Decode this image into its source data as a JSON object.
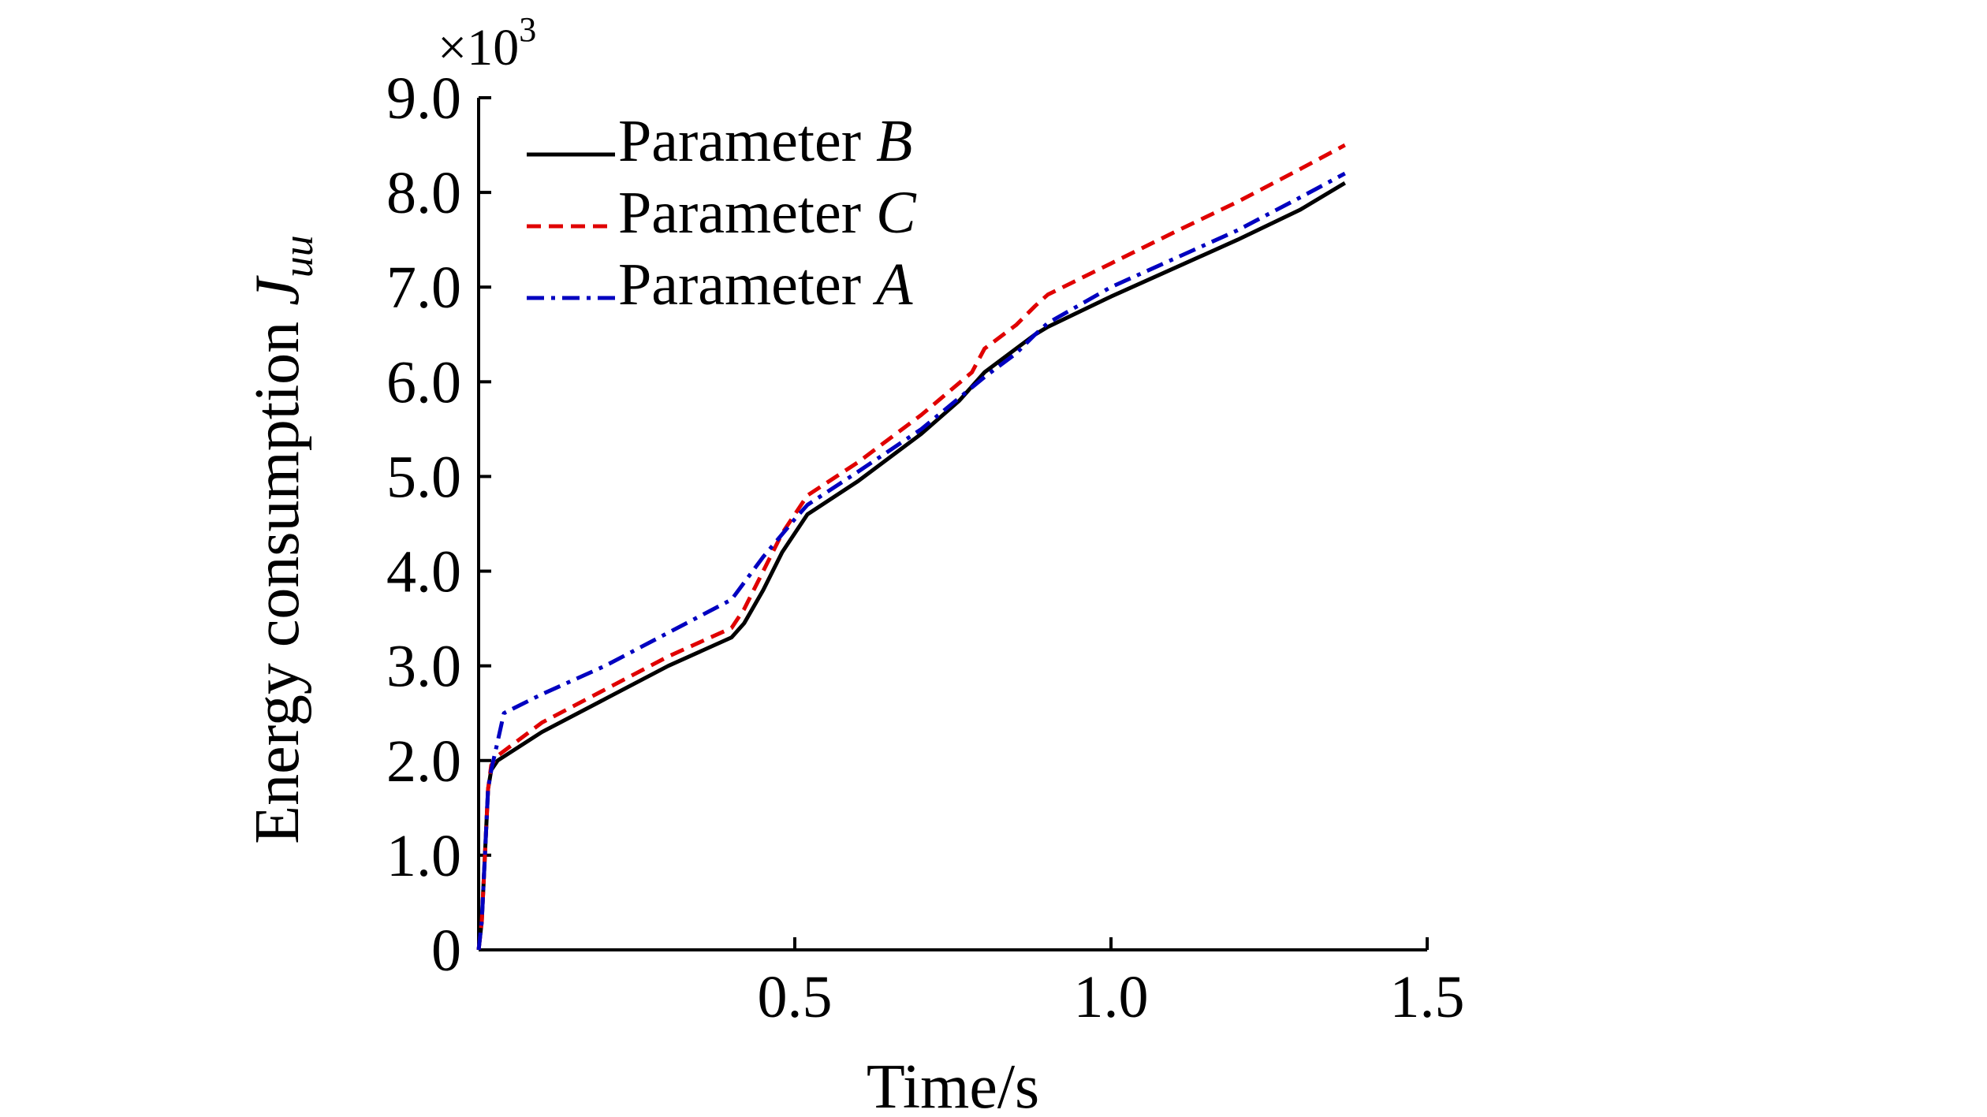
{
  "chart_data": {
    "type": "line",
    "xlabel": "Time/s",
    "ylabel_main": "Energy consumption ",
    "ylabel_var": "J",
    "ylabel_sub": "uu",
    "y_multiplier_prefix": "×10",
    "y_multiplier_exp": "3",
    "xlim": [
      0,
      1.5
    ],
    "ylim": [
      0,
      9.0
    ],
    "x_ticks": [
      {
        "value": 0.5,
        "label": "0.5"
      },
      {
        "value": 1.0,
        "label": "1.0"
      },
      {
        "value": 1.5,
        "label": "1.5"
      }
    ],
    "y_ticks": [
      {
        "value": 0,
        "label": "0"
      },
      {
        "value": 1.0,
        "label": "1.0"
      },
      {
        "value": 2.0,
        "label": "2.0"
      },
      {
        "value": 3.0,
        "label": "3.0"
      },
      {
        "value": 4.0,
        "label": "4.0"
      },
      {
        "value": 5.0,
        "label": "5.0"
      },
      {
        "value": 6.0,
        "label": "6.0"
      },
      {
        "value": 7.0,
        "label": "7.0"
      },
      {
        "value": 8.0,
        "label": "8.0"
      },
      {
        "value": 9.0,
        "label": "9.0"
      }
    ],
    "legend_position": "top-left",
    "series": [
      {
        "name_prefix": "Parameter ",
        "name_var": "B",
        "color": "#000000",
        "dash": "solid",
        "x": [
          0,
          0.005,
          0.01,
          0.015,
          0.02,
          0.03,
          0.1,
          0.2,
          0.3,
          0.4,
          0.42,
          0.45,
          0.48,
          0.5,
          0.52,
          0.6,
          0.7,
          0.76,
          0.8,
          0.85,
          0.88,
          0.9,
          1.0,
          1.1,
          1.2,
          1.3,
          1.37
        ],
        "y": [
          0,
          0.3,
          1.0,
          1.7,
          1.9,
          2.0,
          2.3,
          2.65,
          3.0,
          3.3,
          3.45,
          3.8,
          4.2,
          4.4,
          4.6,
          4.95,
          5.45,
          5.8,
          6.1,
          6.35,
          6.5,
          6.58,
          6.9,
          7.2,
          7.5,
          7.82,
          8.1
        ]
      },
      {
        "name_prefix": "Parameter ",
        "name_var": "C",
        "color": "#e00000",
        "dash": "dashed",
        "x": [
          0,
          0.005,
          0.01,
          0.015,
          0.02,
          0.03,
          0.1,
          0.2,
          0.3,
          0.4,
          0.42,
          0.45,
          0.48,
          0.5,
          0.52,
          0.6,
          0.7,
          0.78,
          0.8,
          0.85,
          0.88,
          0.9,
          1.0,
          1.1,
          1.2,
          1.3,
          1.37
        ],
        "y": [
          0,
          0.3,
          1.0,
          1.7,
          1.95,
          2.05,
          2.4,
          2.75,
          3.1,
          3.4,
          3.6,
          4.0,
          4.4,
          4.6,
          4.8,
          5.15,
          5.65,
          6.1,
          6.35,
          6.6,
          6.8,
          6.92,
          7.25,
          7.58,
          7.9,
          8.25,
          8.5
        ]
      },
      {
        "name_prefix": "Parameter ",
        "name_var": "A",
        "color": "#0000c0",
        "dash": "dashdot",
        "x": [
          0,
          0.005,
          0.01,
          0.015,
          0.02,
          0.03,
          0.04,
          0.1,
          0.2,
          0.3,
          0.4,
          0.45,
          0.5,
          0.52,
          0.6,
          0.7,
          0.8,
          0.85,
          0.88,
          0.9,
          1.0,
          1.1,
          1.2,
          1.3,
          1.37
        ],
        "y": [
          0,
          0.3,
          1.0,
          1.7,
          1.9,
          2.2,
          2.5,
          2.7,
          3.0,
          3.35,
          3.7,
          4.15,
          4.55,
          4.7,
          5.05,
          5.5,
          6.05,
          6.3,
          6.5,
          6.62,
          7.0,
          7.3,
          7.6,
          7.95,
          8.2
        ]
      }
    ]
  }
}
